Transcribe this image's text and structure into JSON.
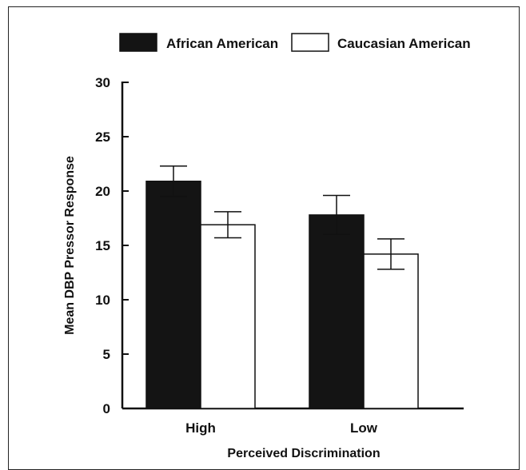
{
  "chart_data": {
    "type": "bar",
    "title": "",
    "xlabel": "Perceived Discrimination",
    "ylabel": "Mean DBP Pressor Response",
    "categories": [
      "High",
      "Low"
    ],
    "ylim": [
      0,
      30
    ],
    "yticks": [
      "0",
      "5",
      "10",
      "15",
      "20",
      "25",
      "30"
    ],
    "series": [
      {
        "name": "African American",
        "color": "#141414",
        "values": [
          20.9,
          17.8
        ],
        "error": [
          1.4,
          1.8
        ]
      },
      {
        "name": "Caucasian American",
        "color": "#ffffff",
        "values": [
          16.9,
          14.2
        ],
        "error": [
          1.2,
          1.4
        ]
      }
    ],
    "grid": false,
    "legend_position": "top"
  }
}
